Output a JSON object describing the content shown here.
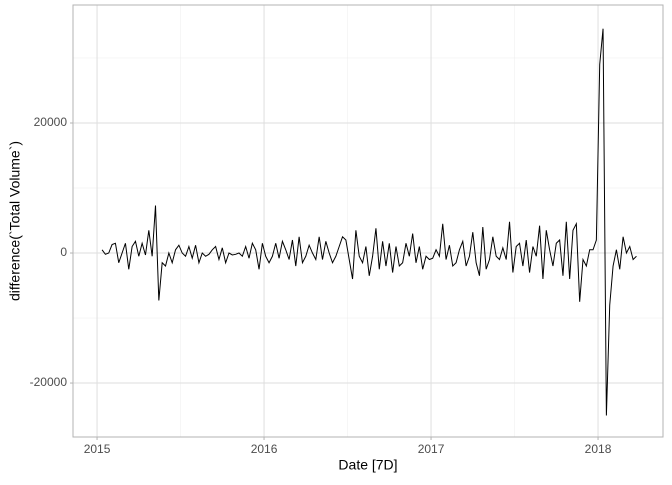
{
  "chart_data": {
    "type": "line",
    "x_label": "Date [7D]",
    "y_label": "difference(`Total Volume`)",
    "x": [
      2015.03,
      2015.05,
      2015.07,
      2015.09,
      2015.11,
      2015.13,
      2015.15,
      2015.17,
      2015.19,
      2015.21,
      2015.23,
      2015.25,
      2015.27,
      2015.29,
      2015.31,
      2015.33,
      2015.35,
      2015.37,
      2015.39,
      2015.41,
      2015.43,
      2015.45,
      2015.47,
      2015.49,
      2015.51,
      2015.53,
      2015.55,
      2015.57,
      2015.59,
      2015.61,
      2015.63,
      2015.65,
      2015.67,
      2015.69,
      2015.71,
      2015.73,
      2015.75,
      2015.77,
      2015.79,
      2015.81,
      2015.83,
      2015.85,
      2015.87,
      2015.89,
      2015.91,
      2015.93,
      2015.95,
      2015.97,
      2015.99,
      2016.01,
      2016.03,
      2016.05,
      2016.07,
      2016.09,
      2016.11,
      2016.13,
      2016.15,
      2016.17,
      2016.19,
      2016.21,
      2016.23,
      2016.25,
      2016.27,
      2016.29,
      2016.31,
      2016.33,
      2016.35,
      2016.37,
      2016.39,
      2016.41,
      2016.43,
      2016.45,
      2016.47,
      2016.49,
      2016.51,
      2016.53,
      2016.55,
      2016.57,
      2016.59,
      2016.61,
      2016.63,
      2016.65,
      2016.67,
      2016.69,
      2016.71,
      2016.73,
      2016.75,
      2016.77,
      2016.79,
      2016.81,
      2016.83,
      2016.85,
      2016.87,
      2016.89,
      2016.91,
      2016.93,
      2016.95,
      2016.97,
      2016.99,
      2017.01,
      2017.03,
      2017.05,
      2017.07,
      2017.09,
      2017.11,
      2017.13,
      2017.15,
      2017.17,
      2017.19,
      2017.21,
      2017.23,
      2017.25,
      2017.27,
      2017.29,
      2017.31,
      2017.33,
      2017.35,
      2017.37,
      2017.39,
      2017.41,
      2017.43,
      2017.45,
      2017.47,
      2017.49,
      2017.51,
      2017.53,
      2017.55,
      2017.57,
      2017.59,
      2017.61,
      2017.63,
      2017.65,
      2017.67,
      2017.69,
      2017.71,
      2017.73,
      2017.75,
      2017.77,
      2017.79,
      2017.81,
      2017.83,
      2017.85,
      2017.87,
      2017.89,
      2017.91,
      2017.93,
      2017.95,
      2017.97,
      2017.99,
      2018.01,
      2018.03,
      2018.05,
      2018.07,
      2018.09,
      2018.11,
      2018.13,
      2018.15,
      2018.17,
      2018.19,
      2018.21,
      2018.23
    ],
    "series": [
      {
        "color": "#000000",
        "values": [
          500,
          -200,
          0,
          1300,
          1500,
          -1500,
          0,
          1500,
          -2500,
          1000,
          1800,
          -500,
          1500,
          -300,
          3500,
          -500,
          7300,
          -7300,
          -1500,
          -2000,
          0,
          -1500,
          500,
          1200,
          0,
          -500,
          1000,
          -800,
          1200,
          -1500,
          0,
          -500,
          -200,
          500,
          1000,
          -1000,
          800,
          -1500,
          0,
          -300,
          -200,
          0,
          -500,
          1000,
          -800,
          1500,
          500,
          -2500,
          1500,
          -500,
          -1500,
          -500,
          1500,
          -800,
          1800,
          500,
          -1000,
          2000,
          -2000,
          2500,
          -1500,
          -500,
          1200,
          0,
          -1000,
          2500,
          -1000,
          1800,
          0,
          -1500,
          -500,
          1000,
          2500,
          2000,
          -1000,
          -4000,
          3500,
          -500,
          -1500,
          1000,
          -3500,
          -500,
          3800,
          -2500,
          1800,
          -2000,
          1500,
          -3000,
          1000,
          -2000,
          -1500,
          1500,
          -500,
          3000,
          -1500,
          1000,
          -2500,
          -500,
          -1000,
          -800,
          500,
          -500,
          4500,
          -1000,
          1200,
          -2000,
          -1500,
          500,
          1800,
          -2000,
          -500,
          3200,
          -1500,
          -3500,
          4000,
          -2500,
          -1000,
          2500,
          -500,
          -1000,
          800,
          -1000,
          4800,
          -3000,
          1000,
          1500,
          -2000,
          2000,
          -3000,
          1000,
          -500,
          4200,
          -4000,
          3500,
          500,
          -2000,
          1500,
          2000,
          -3500,
          4800,
          -4000,
          3500,
          4500,
          -7500,
          -1000,
          -2000,
          500,
          500,
          2000,
          29000,
          34500,
          -25000,
          -8000,
          -2000,
          500,
          -2500,
          2500,
          0,
          1000,
          -1000,
          -500
        ]
      }
    ],
    "xlim": [
      2014.856,
      2018.389
    ],
    "xticks": [
      2015,
      2016,
      2017,
      2018
    ],
    "ylim": [
      -28300,
      38150
    ],
    "yticks": [
      -20000,
      0,
      20000
    ],
    "grid": true
  }
}
